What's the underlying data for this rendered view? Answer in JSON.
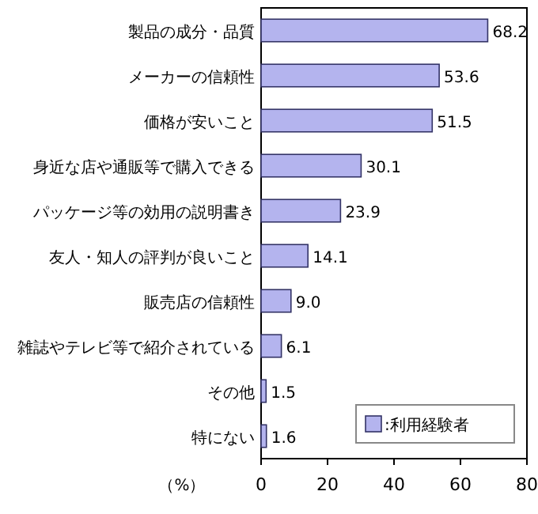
{
  "chart_data": {
    "type": "bar",
    "orientation": "horizontal",
    "categories": [
      "製品の成分・品質",
      "メーカーの信頼性",
      "価格が安いこと",
      "身近な店や通販等で購入できる",
      "パッケージ等の効用の説明書き",
      "友人・知人の評判が良いこと",
      "販売店の信頼性",
      "雑誌やテレビ等で紹介されている",
      "その他",
      "特にない"
    ],
    "series": [
      {
        "name": ":利用経験者",
        "color": "#b4b4ee",
        "values": [
          68.2,
          53.6,
          51.5,
          30.1,
          23.9,
          14.1,
          9.0,
          6.1,
          1.5,
          1.6
        ]
      }
    ],
    "value_labels": [
      "68.2",
      "53.6",
      "51.5",
      "30.1",
      "23.9",
      "14.1",
      "9.0",
      "6.1",
      "1.5",
      "1.6"
    ],
    "xlabel": "（%）",
    "xlim": [
      0,
      80
    ],
    "xticks": [
      0,
      20,
      40,
      60,
      80
    ],
    "grid": false,
    "legend": "bottom right"
  }
}
